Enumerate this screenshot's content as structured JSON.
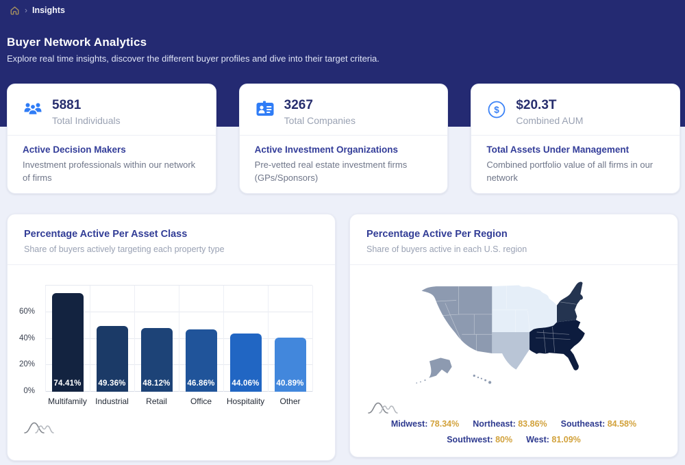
{
  "breadcrumb": {
    "home_icon": "home-icon",
    "current": "Insights"
  },
  "header": {
    "title": "Buyer Network Analytics",
    "subtitle": "Explore real time insights, discover the different buyer profiles and dive into their target criteria."
  },
  "stat_cards": [
    {
      "icon": "people-group-icon",
      "value": "5881",
      "label": "Total Individuals",
      "heading": "Active Decision Makers",
      "description": "Investment professionals within our network of firms"
    },
    {
      "icon": "id-card-icon",
      "value": "3267",
      "label": "Total Companies",
      "heading": "Active Investment Organizations",
      "description": "Pre-vetted real estate investment firms (GPs/Sponsors)"
    },
    {
      "icon": "dollar-circle-icon",
      "value": "$20.3T",
      "label": "Combined AUM",
      "heading": "Total Assets Under Management",
      "description": "Combined portfolio value of all firms in our network"
    }
  ],
  "chart_data": [
    {
      "type": "bar",
      "title": "Percentage Active Per Asset Class",
      "subtitle": "Share of buyers actively targeting each property type",
      "categories": [
        "Multifamily",
        "Industrial",
        "Retail",
        "Office",
        "Hospitality",
        "Other"
      ],
      "values": [
        74.41,
        49.36,
        48.12,
        46.86,
        44.06,
        40.89
      ],
      "value_labels": [
        "74.41%",
        "49.36%",
        "48.12%",
        "46.86%",
        "44.06%",
        "40.89%"
      ],
      "bar_colors": [
        "#132340",
        "#1b3a67",
        "#1d4377",
        "#20549a",
        "#2166c3",
        "#4287dc"
      ],
      "xlabel": "",
      "ylabel": "",
      "ylim": [
        0,
        80
      ],
      "yticks": [
        "0%",
        "20%",
        "40%",
        "60%"
      ],
      "ytick_values": [
        0,
        20,
        40,
        60
      ],
      "gridline_values": [
        0,
        20,
        40,
        60,
        80
      ],
      "grid": true,
      "legend_position": "none"
    },
    {
      "type": "choropleth-map",
      "title": "Percentage Active Per Region",
      "subtitle": "Share of buyers active in each U.S. region",
      "regions": [
        {
          "id": "midwest",
          "name": "Midwest",
          "value": 78.34,
          "label": "78.34%",
          "fill": "#e5eef8"
        },
        {
          "id": "northeast",
          "name": "Northeast",
          "value": 83.86,
          "label": "83.86%",
          "fill": "#243450"
        },
        {
          "id": "southeast",
          "name": "Southeast",
          "value": 84.58,
          "label": "84.58%",
          "fill": "#0d1c3e"
        },
        {
          "id": "southwest",
          "name": "Southwest",
          "value": 80,
          "label": "80%",
          "fill": "#b9c5d6"
        },
        {
          "id": "west",
          "name": "West",
          "value": 81.09,
          "label": "81.09%",
          "fill": "#8d9ab0"
        }
      ],
      "legend_rows": [
        [
          "midwest",
          "northeast",
          "southeast"
        ],
        [
          "southwest",
          "west"
        ]
      ]
    }
  ],
  "colors": {
    "hero_background": "#242a72",
    "page_background": "#edf0f9",
    "accent_blue": "#2f7cf6",
    "title_indigo": "#323d96",
    "legend_gold": "#d2a23c",
    "breadcrumb_gold": "#a9935f"
  }
}
